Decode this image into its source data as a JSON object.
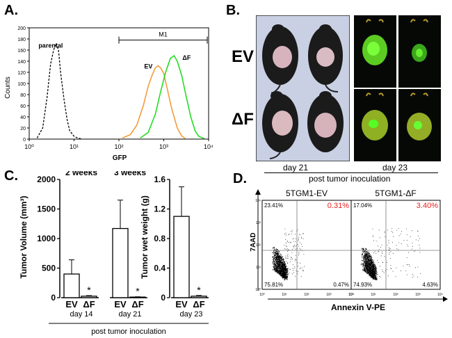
{
  "panels": {
    "a": {
      "letter": "A."
    },
    "b": {
      "letter": "B.",
      "ev_label": "EV",
      "df_label": "ΔF",
      "day_left": "day 21",
      "day_right": "day 23",
      "caption": "post tumor inoculation"
    },
    "c": {
      "letter": "C."
    },
    "d": {
      "letter": "D."
    }
  },
  "chart_data": [
    {
      "panel": "A",
      "type": "line",
      "title": "",
      "xlabel": "GFP",
      "ylabel": "Counts",
      "xscale": "log",
      "xlim": [
        1,
        10000
      ],
      "ylim": [
        0,
        200
      ],
      "x_ticks": [
        "10⁰",
        "10¹",
        "10²",
        "10³",
        "10⁴"
      ],
      "y_ticks": [
        "0",
        "20",
        "40",
        "60",
        "80",
        "100",
        "120",
        "140",
        "160",
        "180",
        "200"
      ],
      "gate": {
        "label": "M1",
        "from": 100,
        "to": 10000
      },
      "series": [
        {
          "name": "parental",
          "color": "#000000",
          "style": "dashed",
          "x": [
            1.5,
            2,
            2.5,
            3,
            3.5,
            4,
            4.5,
            5,
            6,
            7,
            8,
            10,
            12,
            15
          ],
          "y": [
            2,
            20,
            75,
            135,
            160,
            172,
            160,
            120,
            70,
            35,
            15,
            5,
            2,
            0
          ]
        },
        {
          "name": "EV",
          "color": "#f39c3c",
          "style": "solid",
          "x": [
            120,
            180,
            250,
            350,
            450,
            550,
            650,
            750,
            850,
            1000,
            1200,
            1500,
            2000,
            2500,
            3000
          ],
          "y": [
            2,
            8,
            25,
            60,
            95,
            115,
            128,
            132,
            128,
            118,
            90,
            55,
            20,
            6,
            1
          ]
        },
        {
          "name": "ΔF",
          "color": "#22dd22",
          "style": "solid",
          "x": [
            300,
            450,
            650,
            850,
            1100,
            1400,
            1700,
            2000,
            2500,
            3000,
            4000,
            5000,
            6000,
            8000
          ],
          "y": [
            2,
            12,
            45,
            85,
            120,
            145,
            150,
            140,
            115,
            85,
            40,
            15,
            5,
            1
          ]
        }
      ]
    },
    {
      "panel": "C-left",
      "type": "bar",
      "ylabel": "Tumor Volume (mm³)",
      "ylim": [
        0,
        2000
      ],
      "y_ticks": [
        "0",
        "500",
        "1000",
        "1500",
        "2000"
      ],
      "groups": [
        {
          "title": "2 weeks",
          "day": "day 14",
          "categories": [
            "EV",
            "ΔF"
          ],
          "values": [
            400,
            25
          ],
          "errors": [
            240,
            10
          ],
          "significance": [
            "",
            "*"
          ]
        },
        {
          "title": "3 weeks",
          "day": "day 21",
          "categories": [
            "EV",
            "ΔF"
          ],
          "values": [
            1170,
            10
          ],
          "errors": [
            480,
            5
          ],
          "significance": [
            "",
            "*"
          ]
        }
      ],
      "caption": "post tumor inoculation"
    },
    {
      "panel": "C-right",
      "type": "bar",
      "ylabel": "Tumor wet weight (g)",
      "ylim": [
        0,
        1.6
      ],
      "y_ticks": [
        "0",
        "0.4",
        "0.8",
        "1.2",
        "1.6"
      ],
      "groups": [
        {
          "day": "day 23",
          "categories": [
            "EV",
            "ΔF"
          ],
          "values": [
            1.1,
            0.02
          ],
          "errors": [
            0.4,
            0.01
          ],
          "significance": [
            "",
            "*"
          ]
        }
      ]
    },
    {
      "panel": "D",
      "type": "scatter",
      "xlabel": "Annexin V-PE",
      "ylabel": "7AAD",
      "xscale": "log",
      "yscale": "log",
      "x_ticks": [
        "10⁰",
        "10¹",
        "10²",
        "10³",
        "10⁴"
      ],
      "y_ticks": [
        "10⁰",
        "10¹",
        "10²",
        "10³",
        "10⁴"
      ],
      "plots": [
        {
          "title": "5TGM1-EV",
          "quadrants": {
            "ul": "23.41%",
            "ur": "0.31%",
            "ll": "75.81%",
            "lr": "0.47%"
          }
        },
        {
          "title": "5TGM1-ΔF",
          "quadrants": {
            "ul": "17.04%",
            "ur": "3.40%",
            "ll": "74.93%",
            "lr": "4.63%"
          }
        }
      ],
      "highlight_color": "#e8201e"
    }
  ]
}
